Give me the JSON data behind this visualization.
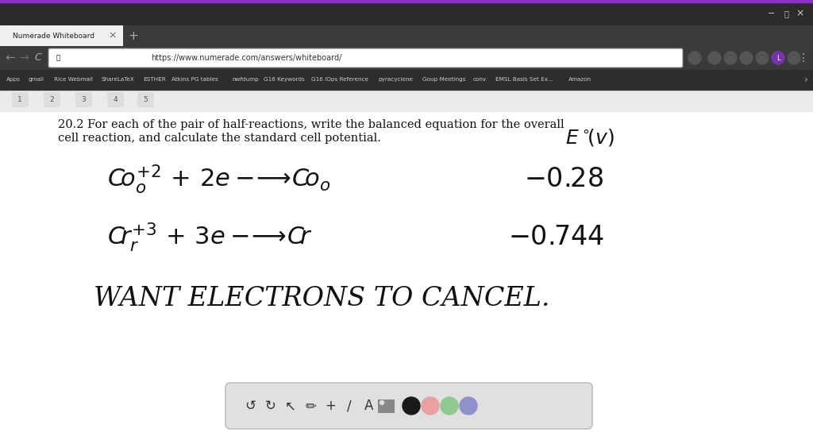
{
  "bg_color": "#ffffff",
  "browser_titlebar_color": "#2b2b2b",
  "browser_tabbar_color": "#3b3b3b",
  "active_tab_color": "#f0f0f0",
  "navbar_color": "#333333",
  "navbar_url_bg": "#ffffff",
  "bookmarks_bar_color": "#2d2d2d",
  "whiteboard_bg": "#ffffff",
  "page_area_bg": "#f0f0f0",
  "purple_accent": "#8b2fc9",
  "browser_url": "https://www.numerade.com/answers/whiteboard/",
  "browser_title": "Numerade Whiteboard",
  "bookmark_items": [
    "Apps",
    "gmail",
    "Rice Webmail",
    "ShareLaTeX",
    "ESTHER",
    "Atkins PG tables",
    "nwfdump",
    "G16 Keywords",
    "G16 IOps Reference",
    "pyracyclene",
    "Goup Meetings",
    "conv",
    "EMSL Basis Set Ex...",
    "Amazon"
  ],
  "title_line1": "20.2 For each of the pair of half-reactions, write the balanced equation for the overall",
  "title_line2": "cell reaction, and calculate the standard cell potential.",
  "ep_text": "E",
  "toolbar_bg": "#e0e0e0",
  "toolbar_border": "#c0c0c0",
  "color_black": "#1a1a1a",
  "color_pink": "#e8a0a0",
  "color_green": "#90c890",
  "color_purple": "#9090cc",
  "figsize": [
    10.24,
    5.54
  ],
  "dpi": 100
}
